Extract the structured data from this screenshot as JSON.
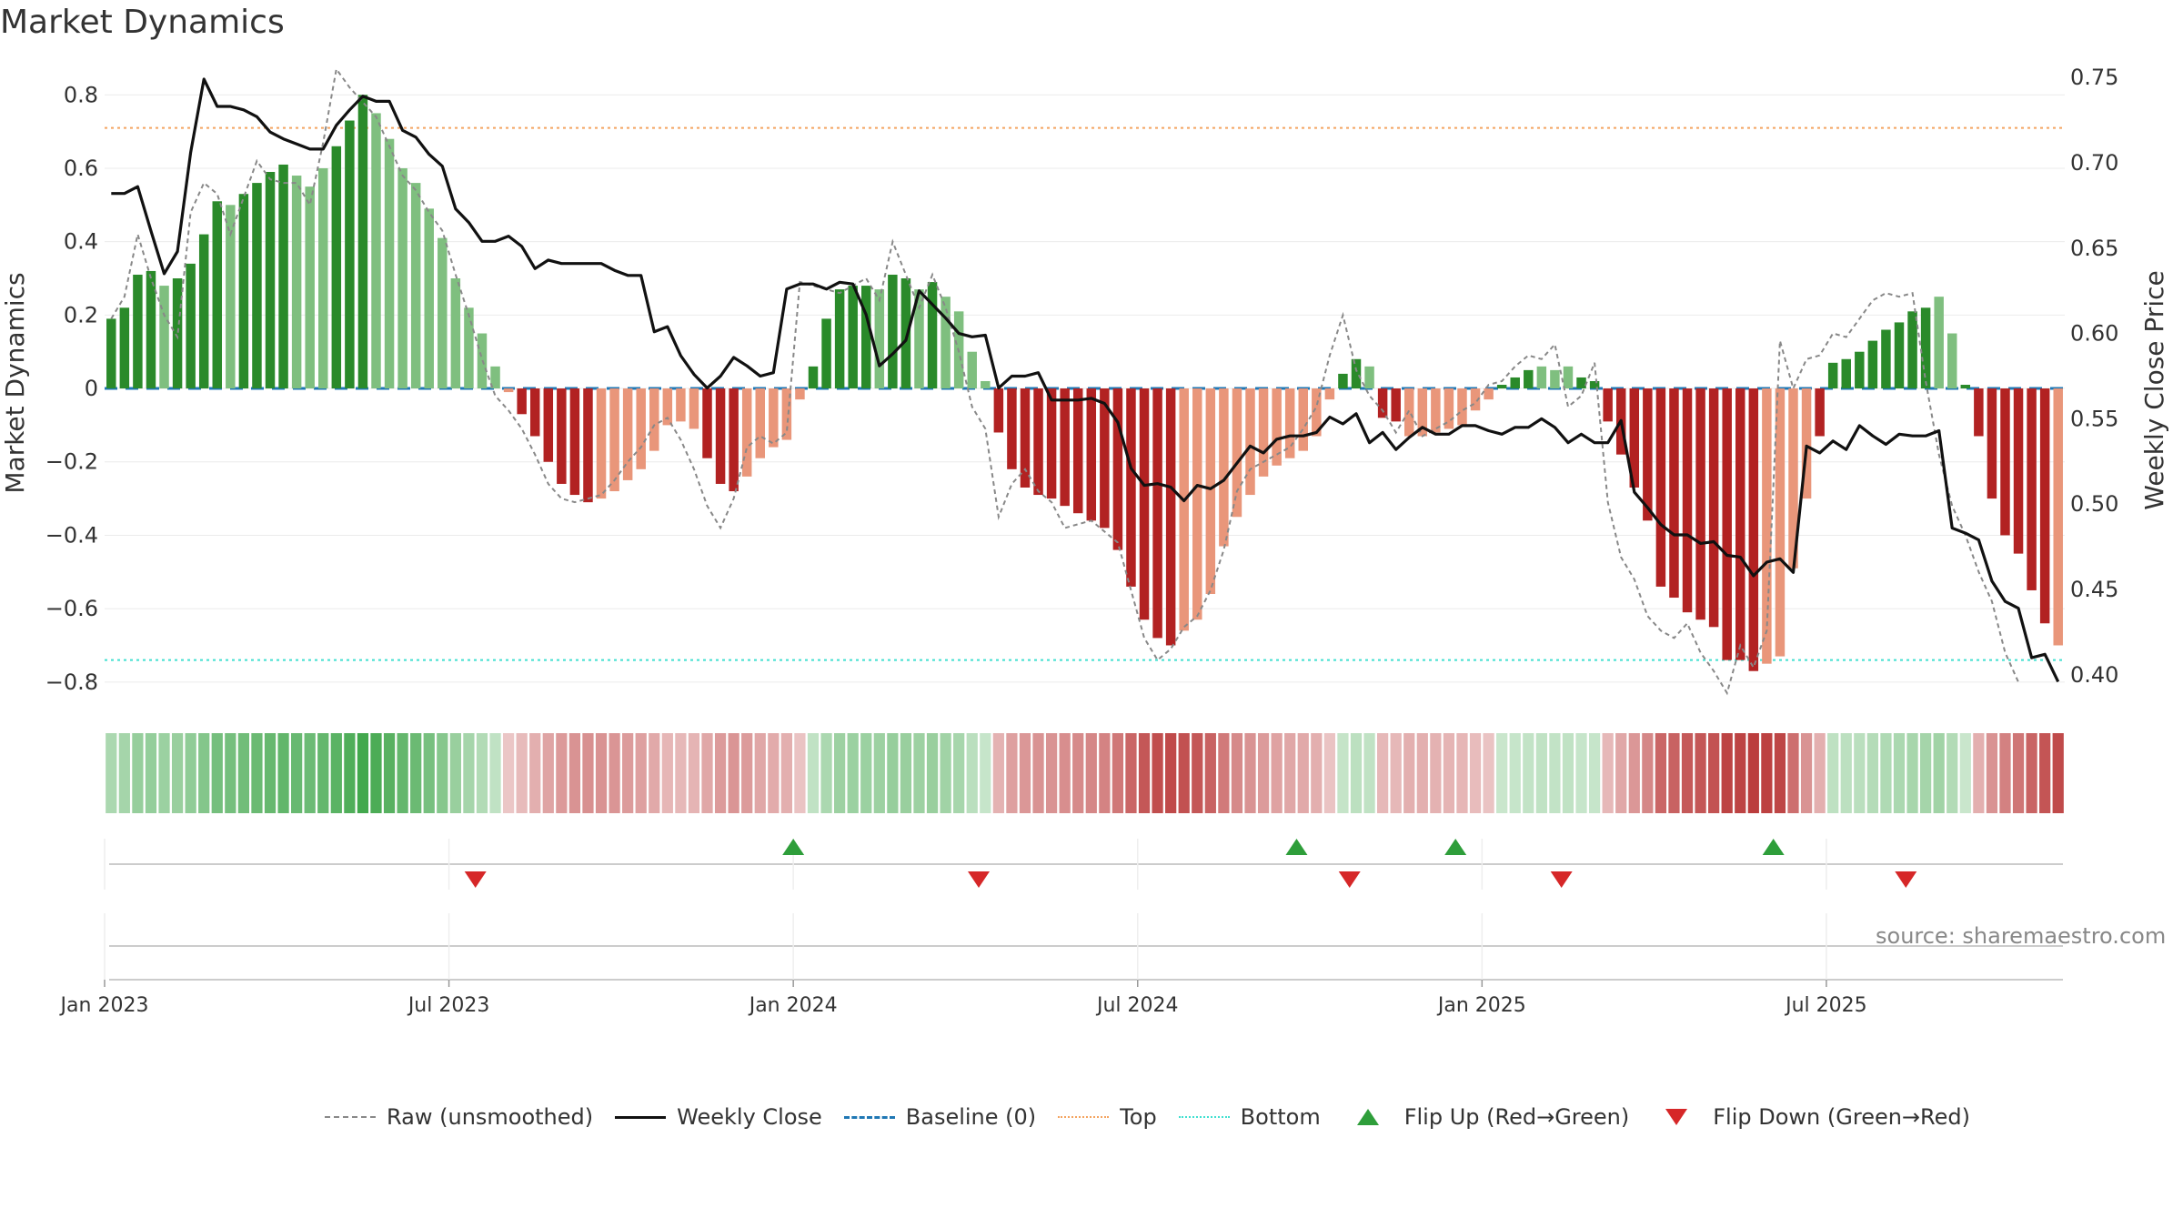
{
  "title": "Market Dynamics",
  "source": "source: sharemaestro.com",
  "legend": {
    "raw": "Raw (unsmoothed)",
    "close": "Weekly Close",
    "baseline": "Baseline (0)",
    "top": "Top",
    "bottom": "Bottom",
    "flip_up": "Flip Up (Red→Green)",
    "flip_down": "Flip Down (Green→Red)"
  },
  "colors": {
    "bar_strong_green": "#2a8a2a",
    "bar_light_green": "#7fbf7f",
    "bar_strong_red": "#b22222",
    "bar_light_red": "#e9967a",
    "close_line": "#111111",
    "raw_line": "#888888",
    "baseline": "#1f77b4",
    "top": "#f4a460",
    "bottom": "#40e0d0",
    "flip_up": "#2e9e3a",
    "flip_down": "#d62728"
  },
  "chart_data": {
    "type": "bar",
    "title": "Market Dynamics",
    "ylabel": "Market Dynamics",
    "y2label": "Weekly Close Price",
    "ylim": [
      -0.85,
      0.88
    ],
    "y2lim": [
      0.385,
      0.757
    ],
    "yticks": [
      0.8,
      0.6,
      0.4,
      0.2,
      0,
      -0.2,
      -0.4,
      -0.6,
      -0.8
    ],
    "ytick_labels": [
      "0.8",
      "0.6",
      "0.4",
      "0.2",
      "0",
      "−0.2",
      "−0.4",
      "−0.6",
      "−0.8"
    ],
    "y2ticks": [
      0.75,
      0.7,
      0.65,
      0.6,
      0.55,
      0.5,
      0.45,
      0.4
    ],
    "y2tick_labels": [
      "0.75",
      "0.70",
      "0.65",
      "0.60",
      "0.55",
      "0.50",
      "0.45",
      "0.40"
    ],
    "xticks": [
      "Jan 2023",
      "Jul 2023",
      "Jan 2024",
      "Jul 2024",
      "Jan 2025",
      "Jul 2025"
    ],
    "xtick_weeks": [
      1,
      27,
      53,
      79,
      105,
      131
    ],
    "top": 0.71,
    "bottom": -0.74,
    "baseline": 0,
    "dynamics": [
      0.19,
      0.22,
      0.31,
      0.32,
      0.28,
      0.3,
      0.34,
      0.42,
      0.51,
      0.5,
      0.53,
      0.56,
      0.59,
      0.61,
      0.58,
      0.55,
      0.6,
      0.66,
      0.73,
      0.8,
      0.75,
      0.68,
      0.6,
      0.56,
      0.49,
      0.41,
      0.3,
      0.22,
      0.15,
      0.06,
      -0.01,
      -0.07,
      -0.13,
      -0.2,
      -0.26,
      -0.29,
      -0.31,
      -0.3,
      -0.28,
      -0.25,
      -0.22,
      -0.17,
      -0.1,
      -0.09,
      -0.11,
      -0.19,
      -0.26,
      -0.28,
      -0.24,
      -0.19,
      -0.16,
      -0.14,
      -0.03,
      0.06,
      0.19,
      0.27,
      0.28,
      0.28,
      0.27,
      0.31,
      0.3,
      0.27,
      0.29,
      0.25,
      0.21,
      0.1,
      0.02,
      -0.12,
      -0.22,
      -0.27,
      -0.29,
      -0.3,
      -0.32,
      -0.34,
      -0.36,
      -0.38,
      -0.44,
      -0.54,
      -0.63,
      -0.68,
      -0.7,
      -0.66,
      -0.63,
      -0.56,
      -0.43,
      -0.35,
      -0.29,
      -0.24,
      -0.21,
      -0.19,
      -0.17,
      -0.13,
      -0.03,
      0.04,
      0.08,
      0.06,
      -0.08,
      -0.09,
      -0.13,
      -0.13,
      -0.12,
      -0.11,
      -0.1,
      -0.06,
      -0.03,
      0.01,
      0.03,
      0.05,
      0.06,
      0.05,
      0.06,
      0.03,
      0.02,
      -0.09,
      -0.18,
      -0.27,
      -0.36,
      -0.54,
      -0.57,
      -0.61,
      -0.63,
      -0.65,
      -0.74,
      -0.74,
      -0.77,
      -0.75,
      -0.73,
      -0.49,
      -0.3,
      -0.13,
      0.07,
      0.08,
      0.1,
      0.13,
      0.16,
      0.18,
      0.21,
      0.22,
      0.25,
      0.15,
      0.01,
      -0.13,
      -0.3,
      -0.4,
      -0.45,
      -0.55,
      -0.64,
      -0.7
    ],
    "dynamics_strength": [
      "strong",
      "strong",
      "strong",
      "strong",
      "light",
      "strong",
      "strong",
      "strong",
      "strong",
      "light",
      "strong",
      "strong",
      "strong",
      "strong",
      "light",
      "light",
      "light",
      "strong",
      "strong",
      "strong",
      "light",
      "light",
      "light",
      "light",
      "light",
      "light",
      "light",
      "light",
      "light",
      "light",
      "light",
      "strong",
      "strong",
      "strong",
      "strong",
      "strong",
      "strong",
      "light",
      "light",
      "light",
      "light",
      "light",
      "light",
      "light",
      "light",
      "strong",
      "strong",
      "strong",
      "light",
      "light",
      "light",
      "light",
      "light",
      "strong",
      "strong",
      "strong",
      "strong",
      "strong",
      "light",
      "strong",
      "strong",
      "light",
      "strong",
      "light",
      "light",
      "light",
      "light",
      "strong",
      "strong",
      "strong",
      "strong",
      "strong",
      "strong",
      "strong",
      "strong",
      "strong",
      "strong",
      "strong",
      "strong",
      "strong",
      "strong",
      "light",
      "light",
      "light",
      "light",
      "light",
      "light",
      "light",
      "light",
      "light",
      "light",
      "light",
      "light",
      "strong",
      "strong",
      "light",
      "strong",
      "strong",
      "light",
      "light",
      "light",
      "light",
      "light",
      "light",
      "light",
      "strong",
      "strong",
      "strong",
      "light",
      "light",
      "light",
      "strong",
      "strong",
      "strong",
      "strong",
      "strong",
      "strong",
      "strong",
      "strong",
      "strong",
      "strong",
      "strong",
      "strong",
      "strong",
      "strong",
      "light",
      "light",
      "light",
      "light",
      "strong",
      "strong",
      "strong",
      "strong",
      "strong",
      "strong",
      "strong",
      "strong",
      "strong",
      "light",
      "light",
      "strong",
      "strong",
      "strong",
      "strong",
      "strong",
      "strong",
      "strong"
    ],
    "raw": [
      0.19,
      0.25,
      0.42,
      0.3,
      0.2,
      0.14,
      0.48,
      0.56,
      0.53,
      0.42,
      0.52,
      0.62,
      0.57,
      0.56,
      0.56,
      0.5,
      0.67,
      0.87,
      0.82,
      0.78,
      0.74,
      0.66,
      0.58,
      0.54,
      0.48,
      0.43,
      0.31,
      0.2,
      0.08,
      -0.02,
      -0.06,
      -0.11,
      -0.18,
      -0.26,
      -0.3,
      -0.31,
      -0.3,
      -0.29,
      -0.25,
      -0.2,
      -0.16,
      -0.1,
      -0.08,
      -0.14,
      -0.22,
      -0.32,
      -0.38,
      -0.3,
      -0.16,
      -0.13,
      -0.15,
      -0.12,
      0.29,
      0.28,
      0.27,
      0.26,
      0.28,
      0.3,
      0.24,
      0.4,
      0.31,
      0.22,
      0.31,
      0.22,
      0.1,
      -0.05,
      -0.11,
      -0.35,
      -0.26,
      -0.22,
      -0.28,
      -0.31,
      -0.38,
      -0.37,
      -0.36,
      -0.39,
      -0.42,
      -0.55,
      -0.68,
      -0.74,
      -0.71,
      -0.65,
      -0.62,
      -0.55,
      -0.44,
      -0.28,
      -0.22,
      -0.2,
      -0.18,
      -0.16,
      -0.11,
      -0.05,
      0.09,
      0.2,
      0.05,
      -0.02,
      -0.06,
      -0.12,
      -0.06,
      -0.13,
      -0.11,
      -0.09,
      -0.06,
      -0.04,
      0.01,
      0.02,
      0.06,
      0.09,
      0.08,
      0.12,
      -0.05,
      -0.02,
      0.07,
      -0.31,
      -0.46,
      -0.52,
      -0.62,
      -0.66,
      -0.68,
      -0.64,
      -0.72,
      -0.77,
      -0.83,
      -0.7,
      -0.76,
      -0.66,
      0.13,
      0.0,
      0.08,
      0.09,
      0.15,
      0.14,
      0.19,
      0.24,
      0.26,
      0.25,
      0.26,
      0.02,
      -0.18,
      -0.32,
      -0.4,
      -0.5,
      -0.58,
      -0.72,
      -0.8
    ],
    "weekly_close": [
      0.682,
      0.682,
      0.686,
      0.66,
      0.635,
      0.648,
      0.706,
      0.749,
      0.733,
      0.733,
      0.731,
      0.727,
      0.718,
      0.714,
      0.711,
      0.708,
      0.708,
      0.722,
      0.731,
      0.739,
      0.736,
      0.736,
      0.719,
      0.715,
      0.705,
      0.698,
      0.673,
      0.665,
      0.654,
      0.654,
      0.657,
      0.651,
      0.638,
      0.643,
      0.641,
      0.641,
      0.641,
      0.641,
      0.637,
      0.634,
      0.634,
      0.601,
      0.604,
      0.587,
      0.576,
      0.568,
      0.575,
      0.586,
      0.581,
      0.575,
      0.577,
      0.626,
      0.629,
      0.629,
      0.626,
      0.63,
      0.629,
      0.611,
      0.581,
      0.588,
      0.596,
      0.625,
      0.617,
      0.609,
      0.6,
      0.598,
      0.599,
      0.568,
      0.575,
      0.575,
      0.577,
      0.561,
      0.561,
      0.561,
      0.562,
      0.559,
      0.548,
      0.521,
      0.511,
      0.512,
      0.51,
      0.502,
      0.511,
      0.509,
      0.514,
      0.524,
      0.534,
      0.53,
      0.538,
      0.54,
      0.54,
      0.542,
      0.551,
      0.547,
      0.553,
      0.536,
      0.542,
      0.532,
      0.539,
      0.545,
      0.541,
      0.541,
      0.546,
      0.546,
      0.543,
      0.541,
      0.545,
      0.545,
      0.55,
      0.545,
      0.536,
      0.541,
      0.536,
      0.536,
      0.549,
      0.507,
      0.498,
      0.488,
      0.482,
      0.482,
      0.477,
      0.478,
      0.47,
      0.469,
      0.458,
      0.466,
      0.468,
      0.46,
      0.534,
      0.53,
      0.537,
      0.532,
      0.546,
      0.54,
      0.535,
      0.541,
      0.54,
      0.54,
      0.543,
      0.486,
      0.483,
      0.479,
      0.455,
      0.443,
      0.439,
      0.41,
      0.412,
      0.396
    ],
    "flip_up_weeks": [
      53,
      91,
      103,
      127
    ],
    "flip_down_weeks": [
      29,
      67,
      95,
      111,
      137
    ]
  }
}
